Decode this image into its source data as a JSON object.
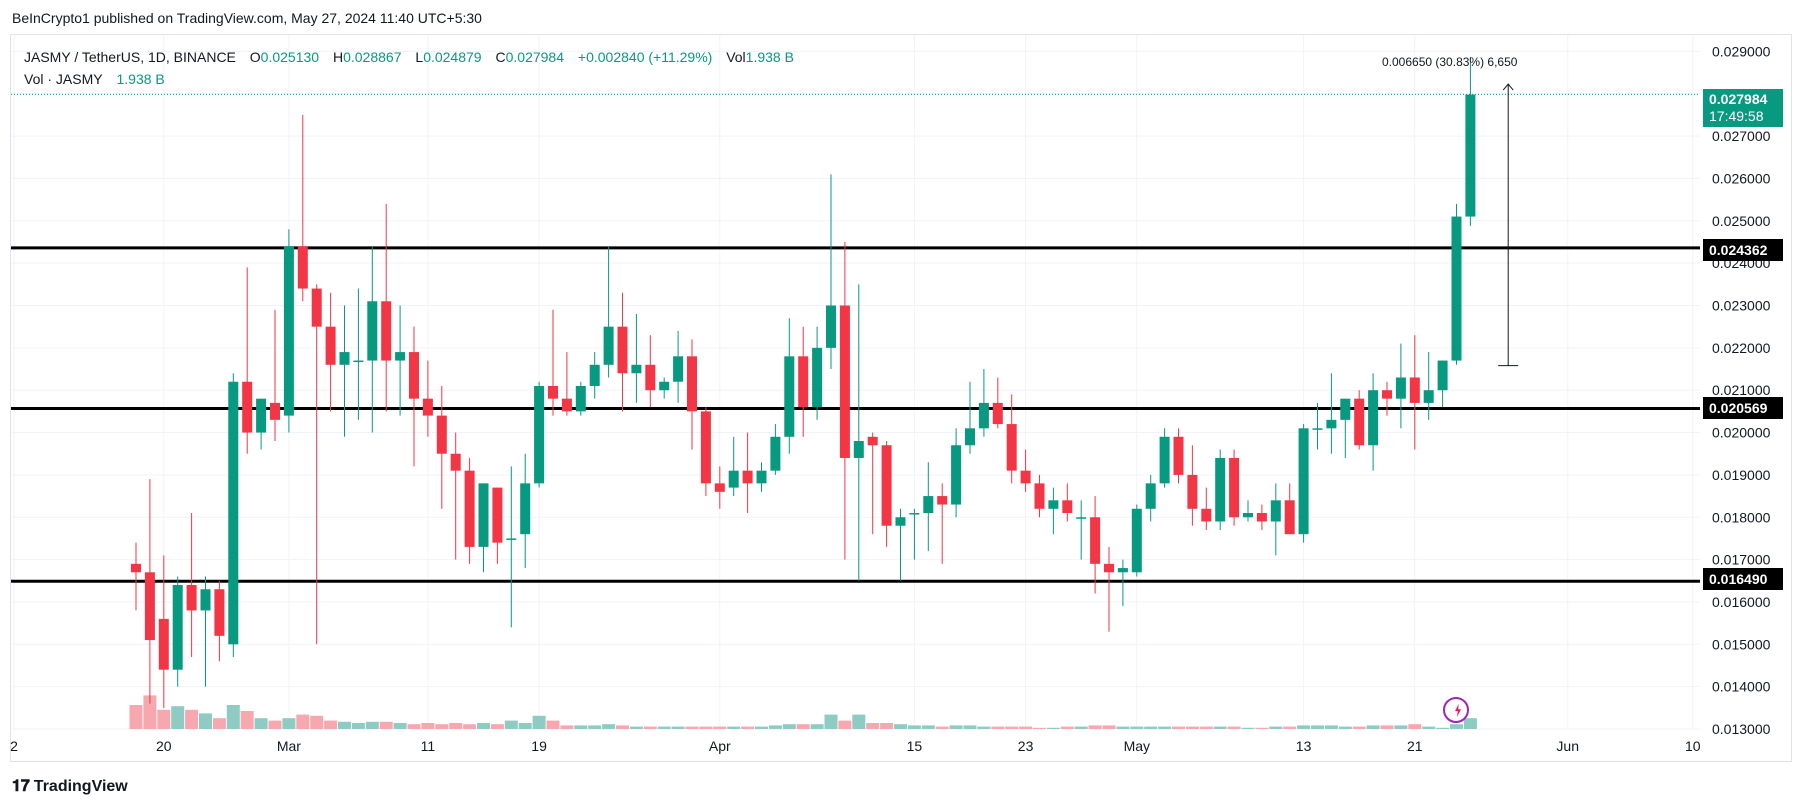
{
  "publisher_line": "BeInCrypto1 published on TradingView.com, May 27, 2024 11:40 UTC+5:30",
  "legend": {
    "symbol": "JASMY / TetherUS, 1D, BINANCE",
    "o_label": "O",
    "o_value": "0.025130",
    "h_label": "H",
    "h_value": "0.028867",
    "l_label": "L",
    "l_value": "0.024879",
    "c_label": "C",
    "c_value": "0.027984",
    "change": "+0.002840 (+11.29%)",
    "vol_label": "Vol",
    "vol_value": "1.938 B",
    "vol_line_label": "Vol · JASMY",
    "vol_line_value": "1.938 B"
  },
  "price_tag": {
    "price": "0.027984",
    "countdown": "17:49:58"
  },
  "measure_label": "0.006650 (30.83%) 6,650",
  "footer_logo": "TradingView",
  "colors": {
    "up": "#089981",
    "down": "#f23645",
    "up_vol": "#8dcbc3",
    "down_vol": "#f7a7ae",
    "level": "#000000"
  },
  "chart_data": {
    "type": "candlestick",
    "ylim": [
      0.0127,
      0.0295
    ],
    "y_ticks": [
      "0.029000",
      "0.028000",
      "0.027000",
      "0.026000",
      "0.025000",
      "0.024000",
      "0.023000",
      "0.022000",
      "0.021000",
      "0.020000",
      "0.019000",
      "0.018000",
      "0.017000",
      "0.016000",
      "0.015000",
      "0.014000",
      "0.013000"
    ],
    "x_ticks": [
      {
        "index": -16,
        "label": "2"
      },
      {
        "index": 2,
        "label": "20"
      },
      {
        "index": 11,
        "label": "Mar"
      },
      {
        "index": 21,
        "label": "11"
      },
      {
        "index": 29,
        "label": "19"
      },
      {
        "index": 42,
        "label": "Apr"
      },
      {
        "index": 56,
        "label": "15"
      },
      {
        "index": 64,
        "label": "23"
      },
      {
        "index": 72,
        "label": "May"
      },
      {
        "index": 84,
        "label": "13"
      },
      {
        "index": 92,
        "label": "21"
      },
      {
        "index": 103,
        "label": "Jun"
      },
      {
        "index": 112,
        "label": "10"
      }
    ],
    "levels": [
      {
        "value": 0.024362,
        "label": "0.024362"
      },
      {
        "value": 0.020569,
        "label": "0.020569"
      },
      {
        "value": 0.01649,
        "label": "0.016490"
      }
    ],
    "last_price": 0.027984,
    "measure": {
      "from_index": 98,
      "from": 0.02158,
      "to": 0.02823
    },
    "candles": [
      {
        "o": 0.0169,
        "h": 0.0174,
        "l": 0.0158,
        "c": 0.0167,
        "v": 0.2
      },
      {
        "o": 0.0167,
        "h": 0.0189,
        "l": 0.0136,
        "c": 0.0151,
        "v": 0.28
      },
      {
        "o": 0.0156,
        "h": 0.0171,
        "l": 0.0135,
        "c": 0.0144,
        "v": 0.16
      },
      {
        "o": 0.0144,
        "h": 0.0166,
        "l": 0.014,
        "c": 0.0164,
        "v": 0.19
      },
      {
        "o": 0.0164,
        "h": 0.0181,
        "l": 0.0147,
        "c": 0.0158,
        "v": 0.16
      },
      {
        "o": 0.0158,
        "h": 0.0166,
        "l": 0.014,
        "c": 0.0163,
        "v": 0.13
      },
      {
        "o": 0.0163,
        "h": 0.0165,
        "l": 0.0146,
        "c": 0.0152,
        "v": 0.09
      },
      {
        "o": 0.015,
        "h": 0.0214,
        "l": 0.0147,
        "c": 0.0212,
        "v": 0.2
      },
      {
        "o": 0.0212,
        "h": 0.0239,
        "l": 0.0195,
        "c": 0.02,
        "v": 0.15
      },
      {
        "o": 0.02,
        "h": 0.0208,
        "l": 0.0196,
        "c": 0.0208,
        "v": 0.09
      },
      {
        "o": 0.0207,
        "h": 0.0229,
        "l": 0.0198,
        "c": 0.0203,
        "v": 0.07
      },
      {
        "o": 0.0204,
        "h": 0.0248,
        "l": 0.02,
        "c": 0.0244,
        "v": 0.09
      },
      {
        "o": 0.0244,
        "h": 0.0275,
        "l": 0.0231,
        "c": 0.0234,
        "v": 0.12
      },
      {
        "o": 0.0234,
        "h": 0.0235,
        "l": 0.015,
        "c": 0.0225,
        "v": 0.11
      },
      {
        "o": 0.0225,
        "h": 0.0233,
        "l": 0.0205,
        "c": 0.0216,
        "v": 0.07
      },
      {
        "o": 0.0216,
        "h": 0.023,
        "l": 0.0199,
        "c": 0.0219,
        "v": 0.06
      },
      {
        "o": 0.0217,
        "h": 0.0234,
        "l": 0.0203,
        "c": 0.0217,
        "v": 0.05
      },
      {
        "o": 0.0217,
        "h": 0.0244,
        "l": 0.02,
        "c": 0.0231,
        "v": 0.06
      },
      {
        "o": 0.0231,
        "h": 0.0254,
        "l": 0.0205,
        "c": 0.0217,
        "v": 0.06
      },
      {
        "o": 0.0217,
        "h": 0.023,
        "l": 0.0204,
        "c": 0.0219,
        "v": 0.05
      },
      {
        "o": 0.0219,
        "h": 0.0225,
        "l": 0.0192,
        "c": 0.0208,
        "v": 0.04
      },
      {
        "o": 0.0208,
        "h": 0.0217,
        "l": 0.0199,
        "c": 0.0204,
        "v": 0.05
      },
      {
        "o": 0.0204,
        "h": 0.0211,
        "l": 0.0182,
        "c": 0.0195,
        "v": 0.04
      },
      {
        "o": 0.0195,
        "h": 0.02,
        "l": 0.017,
        "c": 0.0191,
        "v": 0.05
      },
      {
        "o": 0.0191,
        "h": 0.0194,
        "l": 0.0169,
        "c": 0.0173,
        "v": 0.04
      },
      {
        "o": 0.0173,
        "h": 0.0188,
        "l": 0.0167,
        "c": 0.0188,
        "v": 0.05
      },
      {
        "o": 0.0187,
        "h": 0.0187,
        "l": 0.0169,
        "c": 0.0174,
        "v": 0.04
      },
      {
        "o": 0.0175,
        "h": 0.0192,
        "l": 0.0154,
        "c": 0.0175,
        "v": 0.07
      },
      {
        "o": 0.0176,
        "h": 0.0195,
        "l": 0.0168,
        "c": 0.0188,
        "v": 0.05
      },
      {
        "o": 0.0188,
        "h": 0.0212,
        "l": 0.0187,
        "c": 0.0211,
        "v": 0.11
      },
      {
        "o": 0.0211,
        "h": 0.0229,
        "l": 0.0204,
        "c": 0.0208,
        "v": 0.07
      },
      {
        "o": 0.0208,
        "h": 0.0219,
        "l": 0.0204,
        "c": 0.0205,
        "v": 0.03
      },
      {
        "o": 0.0205,
        "h": 0.0212,
        "l": 0.0204,
        "c": 0.0211,
        "v": 0.03
      },
      {
        "o": 0.0211,
        "h": 0.0219,
        "l": 0.0208,
        "c": 0.0216,
        "v": 0.03
      },
      {
        "o": 0.0216,
        "h": 0.0244,
        "l": 0.0213,
        "c": 0.0225,
        "v": 0.04
      },
      {
        "o": 0.0225,
        "h": 0.0233,
        "l": 0.0205,
        "c": 0.0214,
        "v": 0.03
      },
      {
        "o": 0.0214,
        "h": 0.0228,
        "l": 0.0207,
        "c": 0.0216,
        "v": 0.02
      },
      {
        "o": 0.0216,
        "h": 0.0223,
        "l": 0.0206,
        "c": 0.021,
        "v": 0.02
      },
      {
        "o": 0.021,
        "h": 0.0213,
        "l": 0.0208,
        "c": 0.0212,
        "v": 0.02
      },
      {
        "o": 0.0212,
        "h": 0.0224,
        "l": 0.0207,
        "c": 0.0218,
        "v": 0.02
      },
      {
        "o": 0.0218,
        "h": 0.0222,
        "l": 0.0196,
        "c": 0.0205,
        "v": 0.02
      },
      {
        "o": 0.0205,
        "h": 0.0206,
        "l": 0.0185,
        "c": 0.0188,
        "v": 0.02
      },
      {
        "o": 0.0188,
        "h": 0.0192,
        "l": 0.0182,
        "c": 0.0186,
        "v": 0.02
      },
      {
        "o": 0.0187,
        "h": 0.0199,
        "l": 0.0185,
        "c": 0.0191,
        "v": 0.02
      },
      {
        "o": 0.0191,
        "h": 0.02,
        "l": 0.0181,
        "c": 0.0188,
        "v": 0.02
      },
      {
        "o": 0.0188,
        "h": 0.0193,
        "l": 0.0186,
        "c": 0.0191,
        "v": 0.02
      },
      {
        "o": 0.0191,
        "h": 0.0202,
        "l": 0.019,
        "c": 0.0199,
        "v": 0.03
      },
      {
        "o": 0.0199,
        "h": 0.0227,
        "l": 0.0195,
        "c": 0.0218,
        "v": 0.04
      },
      {
        "o": 0.0218,
        "h": 0.0225,
        "l": 0.0199,
        "c": 0.0206,
        "v": 0.04
      },
      {
        "o": 0.0206,
        "h": 0.0225,
        "l": 0.0203,
        "c": 0.022,
        "v": 0.04
      },
      {
        "o": 0.022,
        "h": 0.0261,
        "l": 0.0215,
        "c": 0.023,
        "v": 0.12
      },
      {
        "o": 0.023,
        "h": 0.0245,
        "l": 0.017,
        "c": 0.0194,
        "v": 0.07
      },
      {
        "o": 0.0194,
        "h": 0.0235,
        "l": 0.0165,
        "c": 0.0198,
        "v": 0.12
      },
      {
        "o": 0.0199,
        "h": 0.02,
        "l": 0.0176,
        "c": 0.0197,
        "v": 0.05
      },
      {
        "o": 0.0197,
        "h": 0.0198,
        "l": 0.0173,
        "c": 0.0178,
        "v": 0.05
      },
      {
        "o": 0.0178,
        "h": 0.0182,
        "l": 0.0165,
        "c": 0.018,
        "v": 0.04
      },
      {
        "o": 0.0181,
        "h": 0.0182,
        "l": 0.017,
        "c": 0.0181,
        "v": 0.03
      },
      {
        "o": 0.0181,
        "h": 0.0193,
        "l": 0.0172,
        "c": 0.0185,
        "v": 0.03
      },
      {
        "o": 0.0185,
        "h": 0.0188,
        "l": 0.0169,
        "c": 0.0183,
        "v": 0.02
      },
      {
        "o": 0.0183,
        "h": 0.0201,
        "l": 0.018,
        "c": 0.0197,
        "v": 0.03
      },
      {
        "o": 0.0197,
        "h": 0.0212,
        "l": 0.0195,
        "c": 0.0201,
        "v": 0.03
      },
      {
        "o": 0.0201,
        "h": 0.0215,
        "l": 0.0199,
        "c": 0.0207,
        "v": 0.02
      },
      {
        "o": 0.0207,
        "h": 0.0213,
        "l": 0.0201,
        "c": 0.0202,
        "v": 0.02
      },
      {
        "o": 0.0202,
        "h": 0.0209,
        "l": 0.0188,
        "c": 0.0191,
        "v": 0.02
      },
      {
        "o": 0.0191,
        "h": 0.0196,
        "l": 0.0186,
        "c": 0.0188,
        "v": 0.02
      },
      {
        "o": 0.0188,
        "h": 0.019,
        "l": 0.018,
        "c": 0.0182,
        "v": 0.01
      },
      {
        "o": 0.0182,
        "h": 0.0187,
        "l": 0.0176,
        "c": 0.0184,
        "v": 0.01
      },
      {
        "o": 0.0184,
        "h": 0.0188,
        "l": 0.0179,
        "c": 0.0181,
        "v": 0.02
      },
      {
        "o": 0.018,
        "h": 0.0184,
        "l": 0.017,
        "c": 0.018,
        "v": 0.02
      },
      {
        "o": 0.018,
        "h": 0.0185,
        "l": 0.0162,
        "c": 0.0169,
        "v": 0.03
      },
      {
        "o": 0.0169,
        "h": 0.0173,
        "l": 0.0153,
        "c": 0.0167,
        "v": 0.03
      },
      {
        "o": 0.0167,
        "h": 0.017,
        "l": 0.0159,
        "c": 0.0168,
        "v": 0.02
      },
      {
        "o": 0.0167,
        "h": 0.0183,
        "l": 0.0166,
        "c": 0.0182,
        "v": 0.02
      },
      {
        "o": 0.0182,
        "h": 0.019,
        "l": 0.0179,
        "c": 0.0188,
        "v": 0.02
      },
      {
        "o": 0.0188,
        "h": 0.0201,
        "l": 0.0187,
        "c": 0.0199,
        "v": 0.02
      },
      {
        "o": 0.0199,
        "h": 0.0201,
        "l": 0.0188,
        "c": 0.019,
        "v": 0.02
      },
      {
        "o": 0.019,
        "h": 0.0197,
        "l": 0.0178,
        "c": 0.0182,
        "v": 0.02
      },
      {
        "o": 0.0182,
        "h": 0.0187,
        "l": 0.0177,
        "c": 0.0179,
        "v": 0.02
      },
      {
        "o": 0.0179,
        "h": 0.0196,
        "l": 0.0177,
        "c": 0.0194,
        "v": 0.02
      },
      {
        "o": 0.0194,
        "h": 0.0196,
        "l": 0.0178,
        "c": 0.018,
        "v": 0.02
      },
      {
        "o": 0.018,
        "h": 0.0184,
        "l": 0.0179,
        "c": 0.0181,
        "v": 0.01
      },
      {
        "o": 0.0181,
        "h": 0.0183,
        "l": 0.0177,
        "c": 0.0179,
        "v": 0.01
      },
      {
        "o": 0.0179,
        "h": 0.0188,
        "l": 0.0171,
        "c": 0.0184,
        "v": 0.02
      },
      {
        "o": 0.0184,
        "h": 0.0188,
        "l": 0.0177,
        "c": 0.0176,
        "v": 0.02
      },
      {
        "o": 0.0176,
        "h": 0.0202,
        "l": 0.0174,
        "c": 0.0201,
        "v": 0.03
      },
      {
        "o": 0.0201,
        "h": 0.0207,
        "l": 0.0196,
        "c": 0.0201,
        "v": 0.03
      },
      {
        "o": 0.0201,
        "h": 0.0214,
        "l": 0.0195,
        "c": 0.0203,
        "v": 0.03
      },
      {
        "o": 0.0203,
        "h": 0.0208,
        "l": 0.0194,
        "c": 0.0208,
        "v": 0.02
      },
      {
        "o": 0.0208,
        "h": 0.021,
        "l": 0.0196,
        "c": 0.0197,
        "v": 0.02
      },
      {
        "o": 0.0197,
        "h": 0.0214,
        "l": 0.0191,
        "c": 0.021,
        "v": 0.03
      },
      {
        "o": 0.021,
        "h": 0.0212,
        "l": 0.0204,
        "c": 0.0208,
        "v": 0.03
      },
      {
        "o": 0.0208,
        "h": 0.0221,
        "l": 0.0201,
        "c": 0.0213,
        "v": 0.03
      },
      {
        "o": 0.0213,
        "h": 0.0223,
        "l": 0.0196,
        "c": 0.0207,
        "v": 0.04
      },
      {
        "o": 0.0207,
        "h": 0.0219,
        "l": 0.0203,
        "c": 0.021,
        "v": 0.02
      },
      {
        "o": 0.021,
        "h": 0.0217,
        "l": 0.0206,
        "c": 0.0217,
        "v": 0.01
      },
      {
        "o": 0.0217,
        "h": 0.0254,
        "l": 0.0216,
        "c": 0.0251,
        "v": 0.04
      },
      {
        "o": 0.0251,
        "h": 0.02887,
        "l": 0.02488,
        "c": 0.02798,
        "v": 0.09
      }
    ]
  }
}
